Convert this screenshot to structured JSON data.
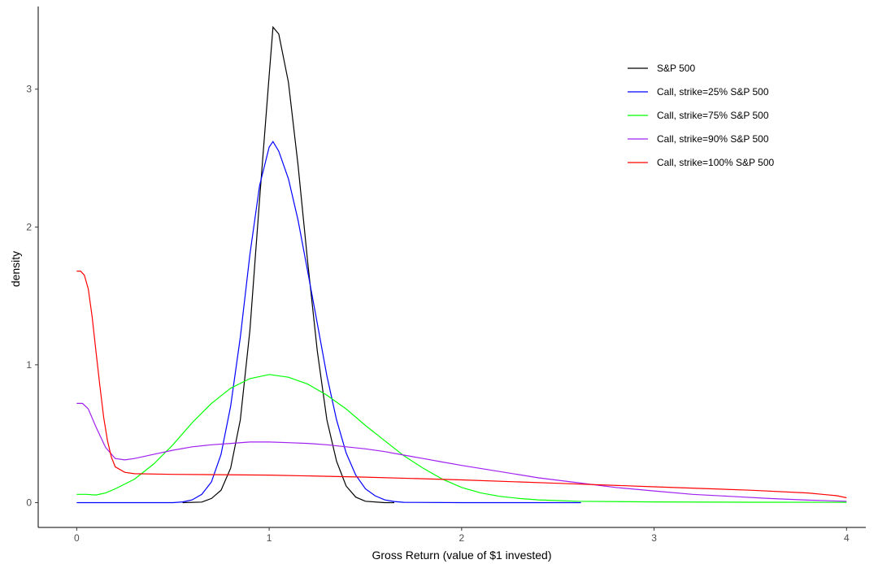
{
  "chart_data": {
    "type": "line",
    "title": "",
    "xlabel": "Gross Return (value of $1 invested)",
    "ylabel": "density",
    "xlim": [
      -0.2,
      4.1
    ],
    "ylim": [
      -0.18,
      3.6
    ],
    "xticks": [
      0,
      1,
      2,
      3,
      4
    ],
    "xtick_labels": [
      "0",
      "1",
      "2",
      "3",
      "4"
    ],
    "yticks": [
      0,
      1,
      2,
      3
    ],
    "ytick_labels": [
      "0",
      "1",
      "2",
      "3"
    ],
    "grid": false,
    "legend_position": "top-right",
    "series": [
      {
        "name": "S&P 500",
        "color": "#000000",
        "points": [
          [
            0.55,
            0
          ],
          [
            0.65,
            0.004
          ],
          [
            0.7,
            0.03
          ],
          [
            0.75,
            0.09
          ],
          [
            0.8,
            0.25
          ],
          [
            0.85,
            0.6
          ],
          [
            0.9,
            1.25
          ],
          [
            0.95,
            2.2
          ],
          [
            1.0,
            3.1
          ],
          [
            1.02,
            3.45
          ],
          [
            1.05,
            3.4
          ],
          [
            1.1,
            3.05
          ],
          [
            1.15,
            2.45
          ],
          [
            1.2,
            1.75
          ],
          [
            1.25,
            1.1
          ],
          [
            1.3,
            0.6
          ],
          [
            1.35,
            0.3
          ],
          [
            1.4,
            0.12
          ],
          [
            1.45,
            0.04
          ],
          [
            1.5,
            0.01
          ],
          [
            1.6,
            0.0
          ],
          [
            1.65,
            0.0
          ]
        ]
      },
      {
        "name": "Call, strike=25% S&P 500",
        "color": "#0000ff",
        "points": [
          [
            0.0,
            0.0
          ],
          [
            0.5,
            0.0
          ],
          [
            0.55,
            0.005
          ],
          [
            0.6,
            0.02
          ],
          [
            0.65,
            0.06
          ],
          [
            0.7,
            0.15
          ],
          [
            0.75,
            0.35
          ],
          [
            0.8,
            0.7
          ],
          [
            0.85,
            1.2
          ],
          [
            0.9,
            1.8
          ],
          [
            0.95,
            2.3
          ],
          [
            1.0,
            2.58
          ],
          [
            1.02,
            2.62
          ],
          [
            1.05,
            2.55
          ],
          [
            1.1,
            2.35
          ],
          [
            1.15,
            2.05
          ],
          [
            1.2,
            1.68
          ],
          [
            1.25,
            1.3
          ],
          [
            1.3,
            0.92
          ],
          [
            1.35,
            0.6
          ],
          [
            1.4,
            0.36
          ],
          [
            1.45,
            0.2
          ],
          [
            1.5,
            0.1
          ],
          [
            1.55,
            0.05
          ],
          [
            1.6,
            0.02
          ],
          [
            1.65,
            0.008
          ],
          [
            1.7,
            0.002
          ],
          [
            2.0,
            0.0
          ],
          [
            2.5,
            0.0
          ],
          [
            2.62,
            0.0
          ]
        ]
      },
      {
        "name": "Call, strike=75% S&P 500",
        "color": "#00ff00",
        "points": [
          [
            0.0,
            0.06
          ],
          [
            0.05,
            0.06
          ],
          [
            0.1,
            0.055
          ],
          [
            0.15,
            0.07
          ],
          [
            0.2,
            0.1
          ],
          [
            0.3,
            0.17
          ],
          [
            0.4,
            0.28
          ],
          [
            0.5,
            0.42
          ],
          [
            0.6,
            0.58
          ],
          [
            0.7,
            0.72
          ],
          [
            0.8,
            0.83
          ],
          [
            0.9,
            0.9
          ],
          [
            1.0,
            0.93
          ],
          [
            1.1,
            0.91
          ],
          [
            1.2,
            0.86
          ],
          [
            1.3,
            0.78
          ],
          [
            1.4,
            0.68
          ],
          [
            1.5,
            0.56
          ],
          [
            1.6,
            0.45
          ],
          [
            1.7,
            0.34
          ],
          [
            1.8,
            0.25
          ],
          [
            1.9,
            0.17
          ],
          [
            2.0,
            0.11
          ],
          [
            2.1,
            0.07
          ],
          [
            2.2,
            0.045
          ],
          [
            2.3,
            0.03
          ],
          [
            2.4,
            0.02
          ],
          [
            2.6,
            0.01
          ],
          [
            3.0,
            0.005
          ],
          [
            3.5,
            0.003
          ],
          [
            4.0,
            0.002
          ]
        ]
      },
      {
        "name": "Call, strike=90% S&P 500",
        "color": "#a020f0",
        "points": [
          [
            0.0,
            0.72
          ],
          [
            0.03,
            0.72
          ],
          [
            0.06,
            0.68
          ],
          [
            0.1,
            0.55
          ],
          [
            0.15,
            0.4
          ],
          [
            0.2,
            0.32
          ],
          [
            0.25,
            0.31
          ],
          [
            0.3,
            0.32
          ],
          [
            0.4,
            0.35
          ],
          [
            0.5,
            0.38
          ],
          [
            0.6,
            0.405
          ],
          [
            0.7,
            0.42
          ],
          [
            0.8,
            0.43
          ],
          [
            0.9,
            0.44
          ],
          [
            1.0,
            0.44
          ],
          [
            1.1,
            0.435
          ],
          [
            1.2,
            0.43
          ],
          [
            1.3,
            0.42
          ],
          [
            1.4,
            0.405
          ],
          [
            1.5,
            0.39
          ],
          [
            1.6,
            0.37
          ],
          [
            1.7,
            0.345
          ],
          [
            1.8,
            0.32
          ],
          [
            1.9,
            0.295
          ],
          [
            2.0,
            0.27
          ],
          [
            2.2,
            0.225
          ],
          [
            2.4,
            0.18
          ],
          [
            2.6,
            0.145
          ],
          [
            2.8,
            0.11
          ],
          [
            3.0,
            0.085
          ],
          [
            3.2,
            0.06
          ],
          [
            3.4,
            0.045
          ],
          [
            3.6,
            0.03
          ],
          [
            3.8,
            0.018
          ],
          [
            4.0,
            0.01
          ]
        ]
      },
      {
        "name": "Call, strike=100% S&P 500",
        "color": "#ff0000",
        "points": [
          [
            0.0,
            1.68
          ],
          [
            0.02,
            1.68
          ],
          [
            0.04,
            1.65
          ],
          [
            0.06,
            1.55
          ],
          [
            0.08,
            1.35
          ],
          [
            0.1,
            1.1
          ],
          [
            0.12,
            0.85
          ],
          [
            0.14,
            0.62
          ],
          [
            0.16,
            0.45
          ],
          [
            0.18,
            0.33
          ],
          [
            0.2,
            0.26
          ],
          [
            0.25,
            0.22
          ],
          [
            0.3,
            0.21
          ],
          [
            0.5,
            0.205
          ],
          [
            1.0,
            0.2
          ],
          [
            1.5,
            0.185
          ],
          [
            2.0,
            0.165
          ],
          [
            2.5,
            0.14
          ],
          [
            3.0,
            0.115
          ],
          [
            3.5,
            0.09
          ],
          [
            3.8,
            0.07
          ],
          [
            3.95,
            0.05
          ],
          [
            4.0,
            0.035
          ]
        ]
      }
    ]
  }
}
